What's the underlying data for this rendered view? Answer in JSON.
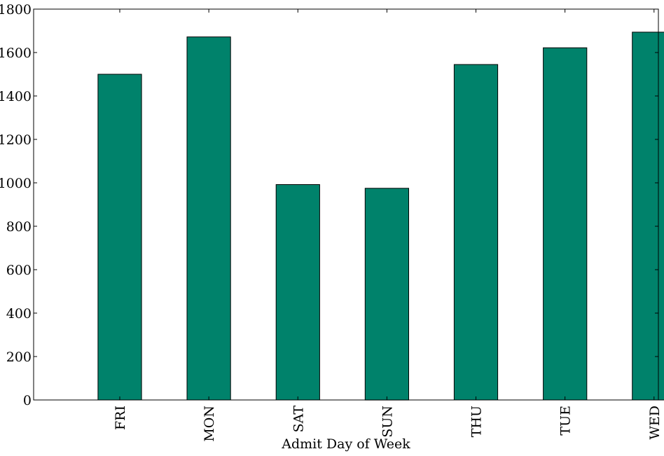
{
  "chart_data": {
    "type": "bar",
    "categories": [
      "FRI",
      "MON",
      "SAT",
      "SUN",
      "THU",
      "TUE",
      "WED"
    ],
    "values": [
      1500,
      1672,
      992,
      975,
      1545,
      1622,
      1694
    ],
    "title": "",
    "xlabel": "Admit Day of Week",
    "ylabel": "",
    "ylim": [
      0,
      1800
    ],
    "yticks": [
      0,
      200,
      400,
      600,
      800,
      1000,
      1200,
      1400,
      1600,
      1800
    ],
    "grid": false,
    "bar_color": "#00826b",
    "bar_edge_color": "#000000"
  }
}
